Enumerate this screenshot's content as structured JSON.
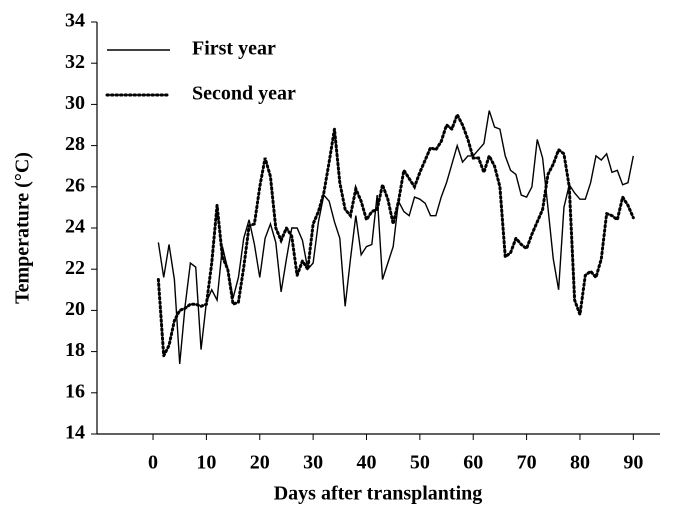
{
  "chart_data": {
    "type": "line",
    "xlabel": "Days after transplanting",
    "ylabel": "Temperature (°C)",
    "x": [
      1,
      2,
      3,
      4,
      5,
      6,
      7,
      8,
      9,
      10,
      11,
      12,
      13,
      14,
      15,
      16,
      17,
      18,
      19,
      20,
      21,
      22,
      23,
      24,
      25,
      26,
      27,
      28,
      29,
      30,
      31,
      32,
      33,
      34,
      35,
      36,
      37,
      38,
      39,
      40,
      41,
      42,
      43,
      44,
      45,
      46,
      47,
      48,
      49,
      50,
      51,
      52,
      53,
      54,
      55,
      56,
      57,
      58,
      59,
      60,
      61,
      62,
      63,
      64,
      65,
      66,
      67,
      68,
      69,
      70,
      71,
      72,
      73,
      74,
      75,
      76,
      77,
      78,
      79,
      80,
      81,
      82,
      83,
      84,
      85,
      86,
      87,
      88,
      89,
      90
    ],
    "series": [
      {
        "name": "First year",
        "color": "#000000",
        "line_style": "solid",
        "values": [
          23.3,
          21.6,
          23.2,
          21.5,
          17.4,
          20.2,
          22.3,
          22.1,
          18.1,
          20.4,
          21.0,
          20.5,
          23.1,
          22.0,
          20.6,
          21.6,
          23.5,
          24.4,
          23.2,
          21.6,
          23.5,
          24.2,
          23.3,
          20.9,
          22.5,
          24.0,
          24.0,
          23.4,
          22.0,
          22.3,
          24.3,
          25.6,
          25.3,
          24.3,
          23.5,
          20.2,
          22.5,
          24.6,
          22.7,
          23.1,
          23.2,
          25.6,
          21.5,
          22.3,
          23.1,
          25.3,
          24.8,
          24.6,
          25.5,
          25.4,
          25.2,
          24.6,
          24.6,
          25.5,
          26.2,
          27.1,
          28.0,
          27.2,
          27.5,
          27.5,
          27.8,
          28.1,
          29.7,
          28.9,
          28.8,
          27.5,
          26.8,
          26.6,
          25.6,
          25.5,
          26.0,
          28.3,
          27.4,
          25.0,
          22.5,
          21.0,
          25.0,
          26.1,
          25.7,
          25.4,
          25.4,
          26.2,
          27.5,
          27.3,
          27.6,
          26.7,
          26.8,
          26.1,
          26.2,
          27.5
        ]
      },
      {
        "name": "Second year",
        "color": "#000000",
        "line_style": "dotted",
        "values": [
          21.5,
          17.8,
          18.3,
          19.5,
          20.0,
          20.1,
          20.3,
          20.3,
          20.2,
          20.3,
          22.3,
          25.1,
          22.6,
          22.0,
          20.3,
          20.4,
          22.1,
          24.1,
          24.2,
          26.0,
          27.4,
          26.5,
          24.0,
          23.4,
          24.0,
          23.6,
          21.7,
          22.4,
          22.0,
          24.2,
          24.8,
          25.7,
          27.2,
          28.8,
          26.2,
          24.9,
          24.6,
          25.9,
          25.3,
          24.4,
          24.8,
          24.9,
          26.1,
          25.4,
          24.2,
          25.3,
          26.8,
          26.4,
          26.0,
          26.7,
          27.3,
          27.9,
          27.8,
          28.2,
          29.0,
          28.8,
          29.5,
          29.0,
          28.3,
          27.4,
          27.4,
          26.7,
          27.5,
          27.0,
          26.0,
          22.6,
          22.8,
          23.5,
          23.2,
          23.0,
          23.7,
          24.3,
          24.9,
          26.6,
          27.1,
          27.8,
          27.6,
          26.0,
          20.5,
          19.8,
          21.7,
          21.9,
          21.6,
          22.5,
          24.7,
          24.6,
          24.4,
          25.5,
          25.1,
          24.5
        ]
      }
    ],
    "xlim": [
      -10.5,
      95
    ],
    "xticks": [
      0,
      10,
      20,
      30,
      40,
      50,
      60,
      70,
      80,
      90
    ],
    "ylim": [
      14,
      34
    ],
    "yticks": [
      14,
      16,
      18,
      20,
      22,
      24,
      26,
      28,
      30,
      32,
      34
    ],
    "legend": "upper left"
  }
}
